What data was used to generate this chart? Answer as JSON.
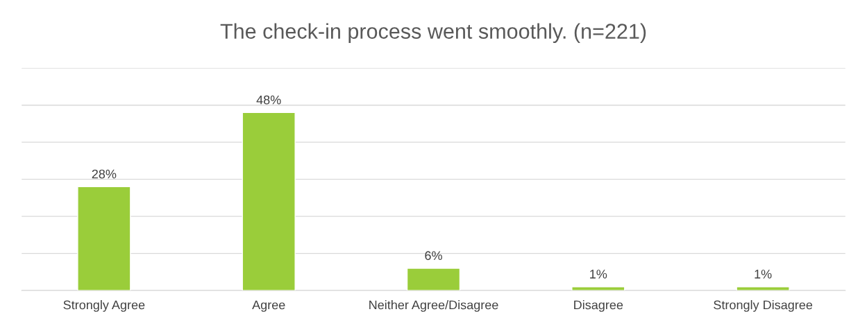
{
  "chart_data": {
    "type": "bar",
    "title": "The check-in process went smoothly. (n=221)",
    "categories": [
      "Strongly Agree",
      "Agree",
      "Neither Agree/Disagree",
      "Disagree",
      "Strongly Disagree"
    ],
    "values": [
      28,
      48,
      6,
      1,
      1
    ],
    "color": "#9acd3a",
    "value_labels": [
      "28%",
      "48%",
      "6%",
      "1%",
      "1%"
    ],
    "ylim": [
      0,
      60
    ],
    "yticks": [
      {
        "value": 0,
        "label": null
      },
      {
        "value": 10,
        "label": null
      },
      {
        "value": 20,
        "label": null
      },
      {
        "value": 30,
        "label": null
      },
      {
        "value": 40,
        "label": null
      },
      {
        "value": 50,
        "label": null
      },
      {
        "value": 60,
        "label": null
      }
    ],
    "tick_labels": "x",
    "grid": "y",
    "legend": false
  }
}
